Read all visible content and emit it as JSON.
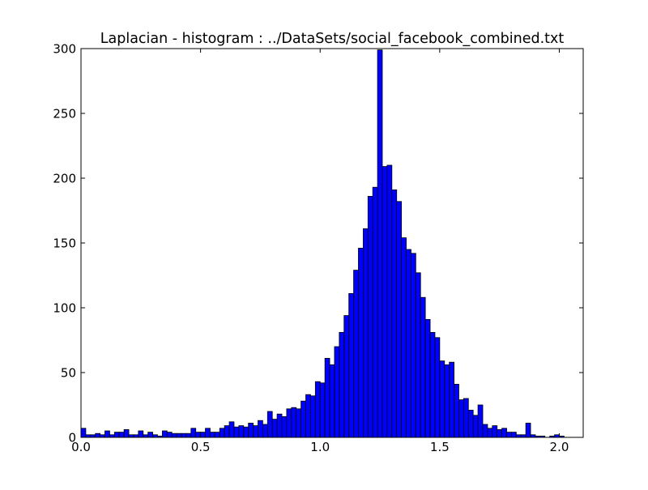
{
  "chart_data": {
    "type": "bar",
    "title": "Laplacian - histogram : ../DataSets/social_facebook_combined.txt",
    "xlabel": "",
    "ylabel": "",
    "xlim": [
      0.0,
      2.1
    ],
    "ylim": [
      0,
      300
    ],
    "x_ticks": [
      "0.0",
      "0.5",
      "1.0",
      "1.5",
      "2.0"
    ],
    "y_ticks": [
      "0",
      "50",
      "100",
      "150",
      "200",
      "250",
      "300"
    ],
    "bin_start": 0.0,
    "bin_width": 0.02,
    "grid": false,
    "bar_color": "#0000ff",
    "edge_color": "#000000",
    "values": [
      7,
      2,
      2,
      3,
      2,
      5,
      2,
      4,
      4,
      6,
      2,
      2,
      5,
      2,
      4,
      2,
      1,
      5,
      4,
      3,
      3,
      3,
      3,
      7,
      4,
      4,
      7,
      4,
      4,
      7,
      9,
      12,
      8,
      9,
      8,
      11,
      9,
      13,
      10,
      20,
      14,
      18,
      16,
      22,
      23,
      22,
      28,
      33,
      32,
      43,
      42,
      61,
      56,
      70,
      81,
      94,
      111,
      129,
      146,
      161,
      186,
      193,
      299,
      209,
      210,
      191,
      182,
      154,
      145,
      142,
      127,
      108,
      91,
      81,
      77,
      59,
      56,
      58,
      41,
      29,
      30,
      21,
      17,
      25,
      10,
      7,
      9,
      6,
      7,
      4,
      4,
      2,
      2,
      11,
      2,
      1,
      1,
      0,
      1,
      2,
      1
    ]
  }
}
